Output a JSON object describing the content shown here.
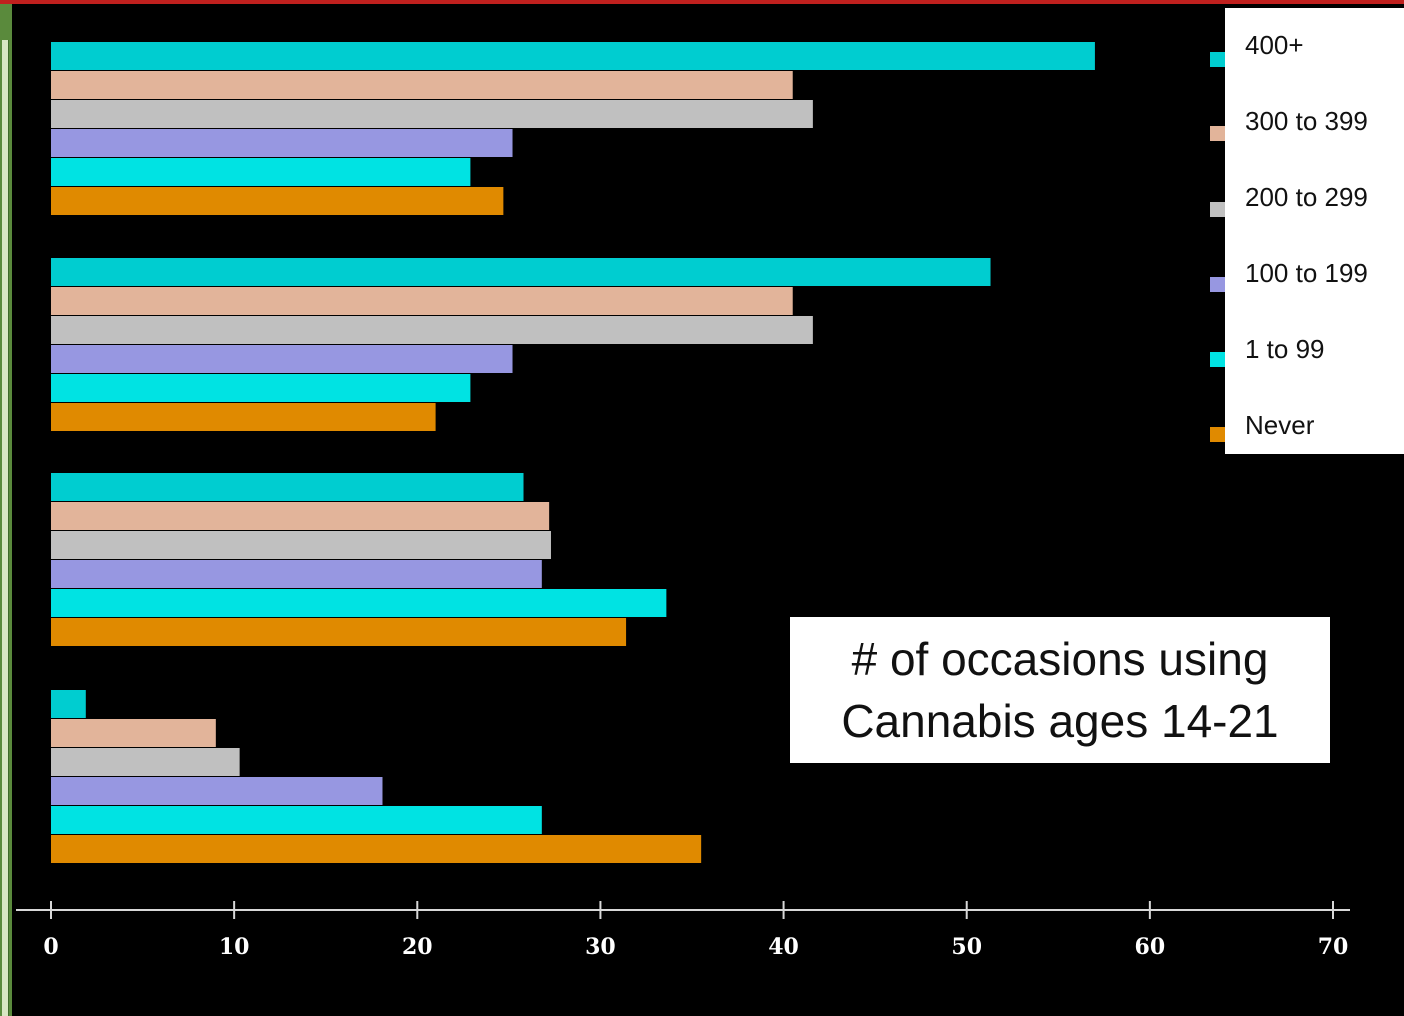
{
  "chart_data": {
    "type": "bar",
    "orientation": "horizontal",
    "title_lines": [
      "# of occasions using",
      "Cannabis ages 14-21"
    ],
    "xlabel": "",
    "ylabel": "",
    "xlim": [
      0,
      70
    ],
    "x_ticks": [
      "0",
      "10",
      "20",
      "30",
      "40",
      "50",
      "60",
      "70"
    ],
    "categories": [
      "",
      "",
      "",
      ""
    ],
    "series": [
      {
        "name": "400+",
        "color": "#00cdd0",
        "values": [
          57.0,
          51.3,
          25.8,
          1.9
        ]
      },
      {
        "name": "300 to 399",
        "color": "#e2b49a",
        "values": [
          40.5,
          40.5,
          27.2,
          9.0
        ]
      },
      {
        "name": "200 to 299",
        "color": "#c0c0c0",
        "values": [
          41.6,
          41.6,
          27.3,
          10.3
        ]
      },
      {
        "name": "100 to 199",
        "color": "#9797e1",
        "values": [
          25.2,
          25.2,
          26.8,
          18.1
        ]
      },
      {
        "name": "1 to 99",
        "color": "#00e3e3",
        "values": [
          22.9,
          22.9,
          33.6,
          26.8
        ]
      },
      {
        "name": "Never",
        "color": "#e08a00",
        "values": [
          24.7,
          21.0,
          31.4,
          35.5
        ]
      }
    ],
    "grid": false,
    "legend_position": "top-right"
  }
}
